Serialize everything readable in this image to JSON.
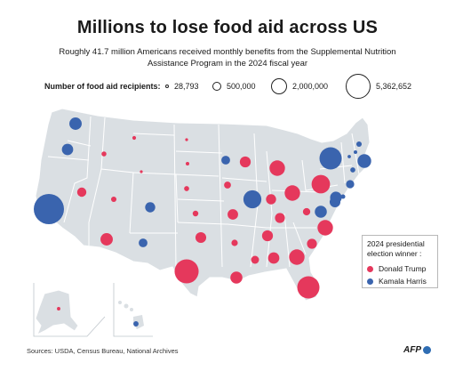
{
  "title": "Millions to lose food aid across US",
  "subtitle": "Roughly 41.7 million Americans received monthly benefits from the Supplemental Nutrition Assistance Program in the 2024 fiscal year",
  "size_legend": {
    "label": "Number of food aid recipients:",
    "items": [
      {
        "label": "28,793",
        "value": 28793
      },
      {
        "label": "500,000",
        "value": 500000
      },
      {
        "label": "2,000,000",
        "value": 2000000
      },
      {
        "label": "5,362,652",
        "value": 5362652
      }
    ]
  },
  "color_legend": {
    "heading": "2024 presidential election winner :",
    "items": [
      {
        "label": "Donald Trump",
        "color": "#e5385c"
      },
      {
        "label": "Kamala Harris",
        "color": "#3a64ae"
      }
    ]
  },
  "colors": {
    "land": "#dadfe3",
    "border": "#ffffff",
    "trump": "#e5385c",
    "harris": "#3a64ae"
  },
  "states": [
    {
      "id": "CA",
      "winner": "harris",
      "recipients": 5362652
    },
    {
      "id": "TX",
      "winner": "trump",
      "recipients": 3400000
    },
    {
      "id": "FL",
      "winner": "trump",
      "recipients": 2900000
    },
    {
      "id": "NY",
      "winner": "harris",
      "recipients": 2900000
    },
    {
      "id": "IL",
      "winner": "harris",
      "recipients": 1900000
    },
    {
      "id": "PA",
      "winner": "trump",
      "recipients": 2000000
    },
    {
      "id": "GA",
      "winner": "trump",
      "recipients": 1400000
    },
    {
      "id": "OH",
      "winner": "trump",
      "recipients": 1400000
    },
    {
      "id": "MI",
      "winner": "trump",
      "recipients": 1400000
    },
    {
      "id": "NC",
      "winner": "trump",
      "recipients": 1400000
    },
    {
      "id": "WA",
      "winner": "harris",
      "recipients": 900000
    },
    {
      "id": "OR",
      "winner": "harris",
      "recipients": 750000
    },
    {
      "id": "NV",
      "winner": "trump",
      "recipients": 500000
    },
    {
      "id": "AZ",
      "winner": "trump",
      "recipients": 900000
    },
    {
      "id": "NM",
      "winner": "harris",
      "recipients": 450000
    },
    {
      "id": "CO",
      "winner": "harris",
      "recipients": 600000
    },
    {
      "id": "UT",
      "winner": "trump",
      "recipients": 170000
    },
    {
      "id": "ID",
      "winner": "trump",
      "recipients": 140000
    },
    {
      "id": "MT",
      "winner": "trump",
      "recipients": 80000
    },
    {
      "id": "WY",
      "winner": "trump",
      "recipients": 28793
    },
    {
      "id": "ND",
      "winner": "trump",
      "recipients": 40000
    },
    {
      "id": "SD",
      "winner": "trump",
      "recipients": 75000
    },
    {
      "id": "NE",
      "winner": "trump",
      "recipients": 150000
    },
    {
      "id": "KS",
      "winner": "trump",
      "recipients": 190000
    },
    {
      "id": "OK",
      "winner": "trump",
      "recipients": 680000
    },
    {
      "id": "MN",
      "winner": "harris",
      "recipients": 450000
    },
    {
      "id": "IA",
      "winner": "trump",
      "recipients": 280000
    },
    {
      "id": "MO",
      "winner": "trump",
      "recipients": 650000
    },
    {
      "id": "AR",
      "winner": "trump",
      "recipients": 240000
    },
    {
      "id": "LA",
      "winner": "trump",
      "recipients": 850000
    },
    {
      "id": "WI",
      "winner": "trump",
      "recipients": 700000
    },
    {
      "id": "IN",
      "winner": "trump",
      "recipients": 600000
    },
    {
      "id": "KY",
      "winner": "trump",
      "recipients": 580000
    },
    {
      "id": "TN",
      "winner": "trump",
      "recipients": 700000
    },
    {
      "id": "MS",
      "winner": "trump",
      "recipients": 370000
    },
    {
      "id": "AL",
      "winner": "trump",
      "recipients": 750000
    },
    {
      "id": "SC",
      "winner": "trump",
      "recipients": 580000
    },
    {
      "id": "WV",
      "winner": "trump",
      "recipients": 320000
    },
    {
      "id": "VA",
      "winner": "harris",
      "recipients": 850000
    },
    {
      "id": "MD",
      "winner": "harris",
      "recipients": 680000
    },
    {
      "id": "DE",
      "winner": "harris",
      "recipients": 120000
    },
    {
      "id": "NJ",
      "winner": "harris",
      "recipients": 800000
    },
    {
      "id": "CT",
      "winner": "harris",
      "recipients": 400000
    },
    {
      "id": "RI",
      "winner": "harris",
      "recipients": 150000
    },
    {
      "id": "MA",
      "winner": "harris",
      "recipients": 1100000
    },
    {
      "id": "VT",
      "winner": "harris",
      "recipients": 65000
    },
    {
      "id": "NH",
      "winner": "harris",
      "recipients": 75000
    },
    {
      "id": "ME",
      "winner": "harris",
      "recipients": 170000
    },
    {
      "id": "AK",
      "winner": "trump",
      "recipients": 70000
    },
    {
      "id": "HI",
      "winner": "harris",
      "recipients": 160000
    }
  ],
  "source": "Sources: USDA, Census Bureau, National Archives",
  "credit": "AFP"
}
